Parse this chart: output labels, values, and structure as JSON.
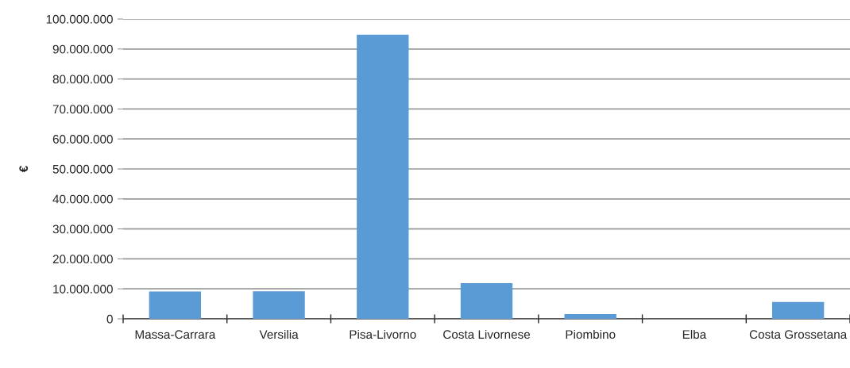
{
  "chart_data": {
    "type": "bar",
    "ylabel": "€",
    "categories": [
      "Massa-Carrara",
      "Versilia",
      "Pisa-Livorno",
      "Costa Livornese",
      "Piombino",
      "Elba",
      "Costa Grossetana"
    ],
    "values": [
      9100000,
      9200000,
      94800000,
      11900000,
      1600000,
      0,
      5600000
    ],
    "color": "#5b9bd5",
    "ylim": [
      0,
      100000000
    ],
    "yticks": [
      0,
      {
        "value": 10000000,
        "label": "10.000.000"
      },
      {
        "value": 20000000,
        "label": "20.000.000"
      },
      {
        "value": 30000000,
        "label": "30.000.000"
      },
      {
        "value": 40000000,
        "label": "40.000.000"
      },
      {
        "value": 50000000,
        "label": "50.000.000"
      },
      {
        "value": 60000000,
        "label": "60.000.000"
      },
      {
        "value": 70000000,
        "label": "70.000.000"
      },
      {
        "value": 80000000,
        "label": "80.000.000"
      },
      {
        "value": 90000000,
        "label": "90.000.000"
      },
      {
        "value": 100000000,
        "label": "100.000.000"
      }
    ],
    "grid": "y"
  }
}
